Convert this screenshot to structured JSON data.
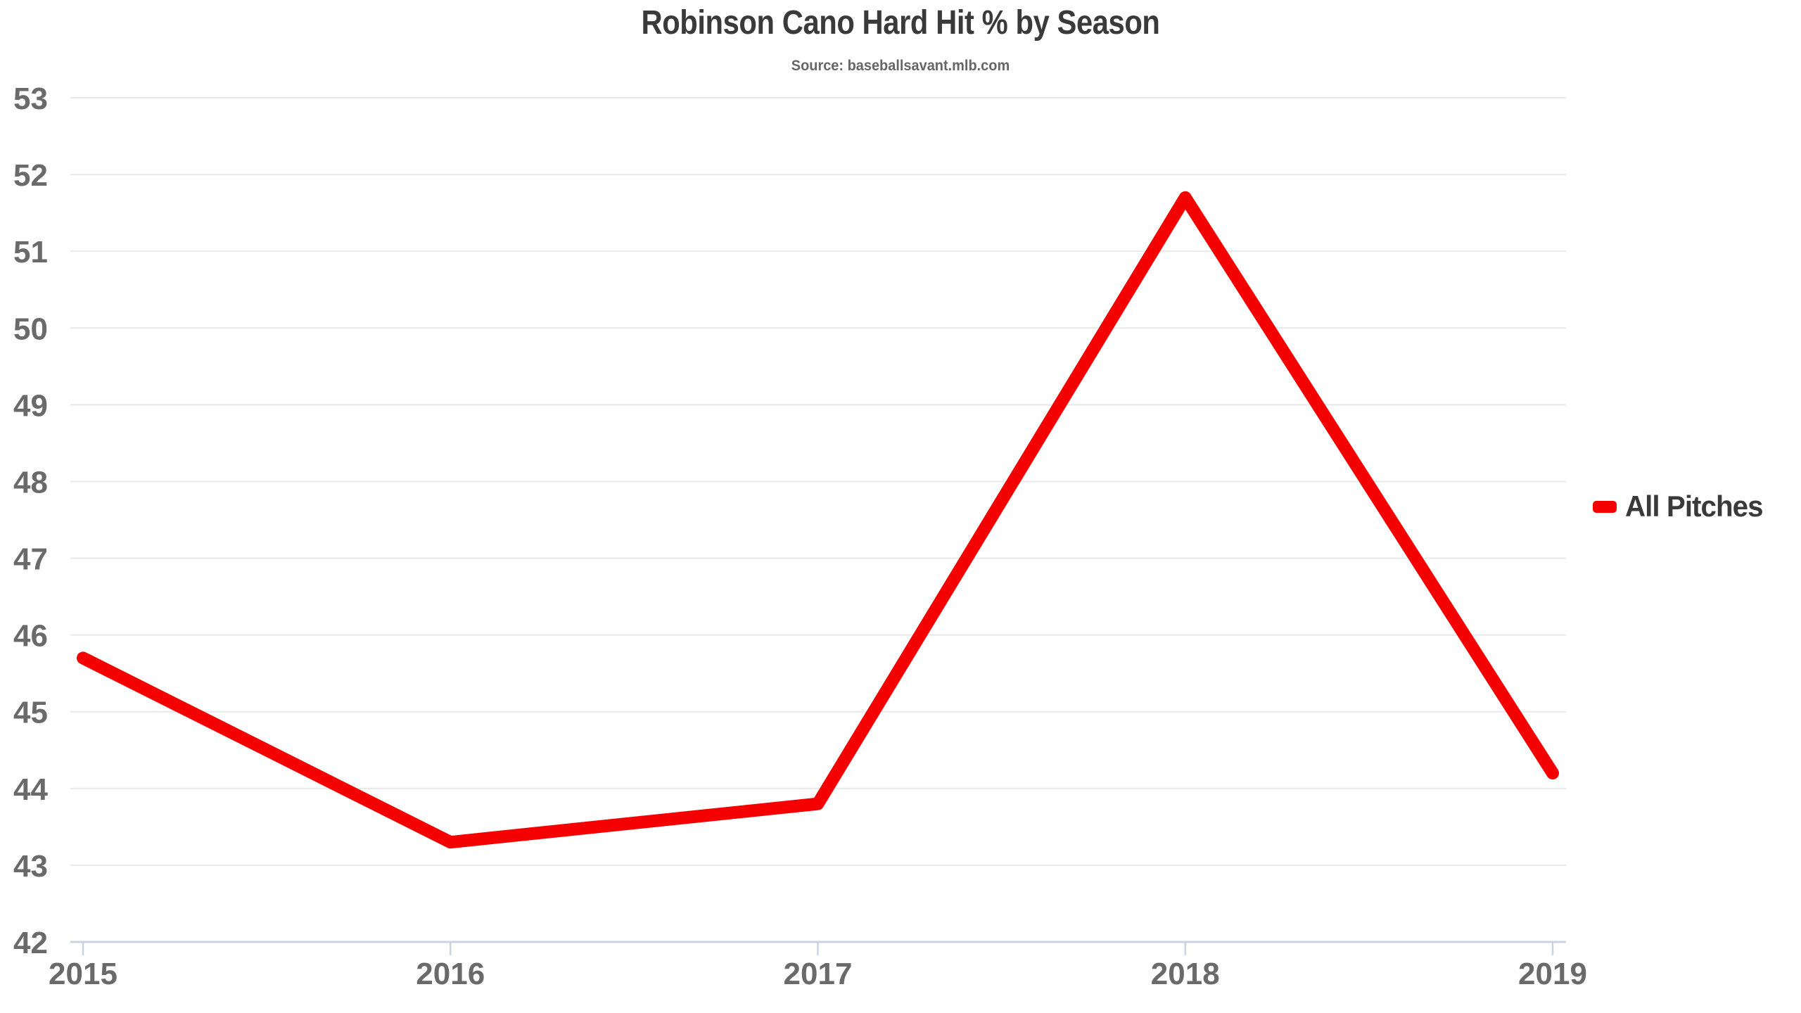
{
  "header": {
    "title": "Robinson Cano Hard Hit % by Season",
    "subtitle": "Source: baseballsavant.mlb.com"
  },
  "legend": {
    "position": "right",
    "items": [
      {
        "label": "All Pitches",
        "color": "#f40000"
      }
    ]
  },
  "chart_data": {
    "type": "line",
    "title": "Robinson Cano Hard Hit % by Season",
    "subtitle": "Source: baseballsavant.mlb.com",
    "x_categories": [
      "2015",
      "2016",
      "2017",
      "2018",
      "2019"
    ],
    "series": [
      {
        "name": "All Pitches",
        "color": "#f40000",
        "values": [
          45.7,
          43.3,
          43.8,
          51.7,
          44.2
        ]
      }
    ],
    "xlabel": "",
    "ylabel": "",
    "ylim": [
      42,
      53
    ],
    "ytick_step": 1,
    "yticks": [
      42,
      43,
      44,
      45,
      46,
      47,
      48,
      49,
      50,
      51,
      52,
      53
    ],
    "grid": "horizontal-only",
    "legend_position": "right",
    "line_width": 18
  },
  "colors": {
    "background": "#ffffff",
    "title": "#3a3a3a",
    "subtitle": "#666666",
    "tick_label": "#6a6a6a",
    "grid": "#e8e8e8",
    "axis": "#c9d4e2",
    "series_red": "#f40000"
  }
}
